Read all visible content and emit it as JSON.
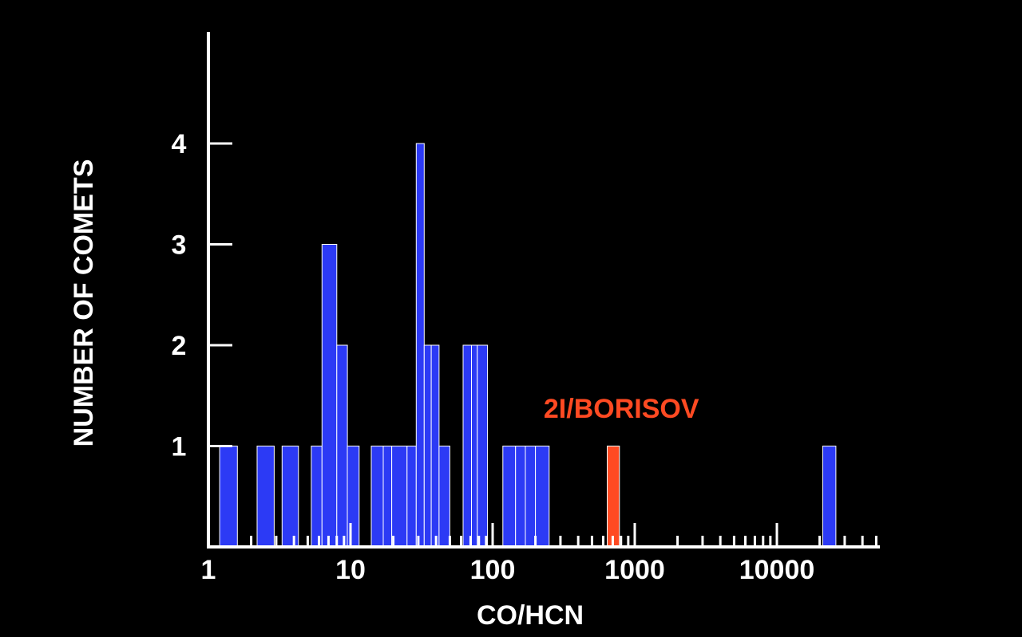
{
  "colors": {
    "background": "#000000",
    "axis": "#ffffff",
    "bar_fill": "#2c3af5",
    "bar_edge": "#ffffff",
    "highlight": "#ff4a22"
  },
  "chart_data": {
    "type": "bar",
    "xlabel": "CO/HCN",
    "ylabel": "NUMBER OF COMETS",
    "x_scale": "log",
    "xlim": [
      1,
      50000
    ],
    "ylim": [
      0,
      5
    ],
    "x_tick_labels": [
      "1",
      "10",
      "100",
      "1000",
      "10000"
    ],
    "x_tick_values": [
      1,
      10,
      100,
      1000,
      10000
    ],
    "y_tick_labels": [
      "1",
      "2",
      "3",
      "4"
    ],
    "y_tick_values": [
      1,
      2,
      3,
      4
    ],
    "grid": false,
    "legend": "none",
    "series": [
      {
        "name": "",
        "bars": [
          {
            "from": 1.2,
            "to": 1.6,
            "count": 1
          },
          {
            "from": 2.2,
            "to": 2.9,
            "count": 1
          },
          {
            "from": 3.3,
            "to": 4.3,
            "count": 1
          },
          {
            "from": 5.3,
            "to": 6.3,
            "count": 1
          },
          {
            "from": 6.3,
            "to": 8.0,
            "count": 3
          },
          {
            "from": 8.0,
            "to": 9.5,
            "count": 2
          },
          {
            "from": 9.5,
            "to": 11.5,
            "count": 1
          },
          {
            "from": 14,
            "to": 17,
            "count": 1
          },
          {
            "from": 17,
            "to": 19.5,
            "count": 1
          },
          {
            "from": 19.5,
            "to": 25,
            "count": 1
          },
          {
            "from": 25,
            "to": 29,
            "count": 1
          },
          {
            "from": 29,
            "to": 33,
            "count": 4
          },
          {
            "from": 33,
            "to": 37,
            "count": 2
          },
          {
            "from": 37,
            "to": 42,
            "count": 2
          },
          {
            "from": 42,
            "to": 50,
            "count": 1
          },
          {
            "from": 62,
            "to": 71,
            "count": 2
          },
          {
            "from": 71,
            "to": 78,
            "count": 2
          },
          {
            "from": 78,
            "to": 92,
            "count": 2
          },
          {
            "from": 118,
            "to": 145,
            "count": 1
          },
          {
            "from": 145,
            "to": 170,
            "count": 1
          },
          {
            "from": 170,
            "to": 200,
            "count": 1
          },
          {
            "from": 200,
            "to": 250,
            "count": 1
          },
          {
            "from": 21000,
            "to": 26000,
            "count": 1
          }
        ]
      },
      {
        "name": "2I/BORISOV",
        "bars": [
          {
            "from": 640,
            "to": 780,
            "count": 1
          }
        ]
      }
    ],
    "annotations": [
      {
        "text": "2I/BORISOV",
        "x": 680,
        "y": 1.25
      }
    ]
  }
}
